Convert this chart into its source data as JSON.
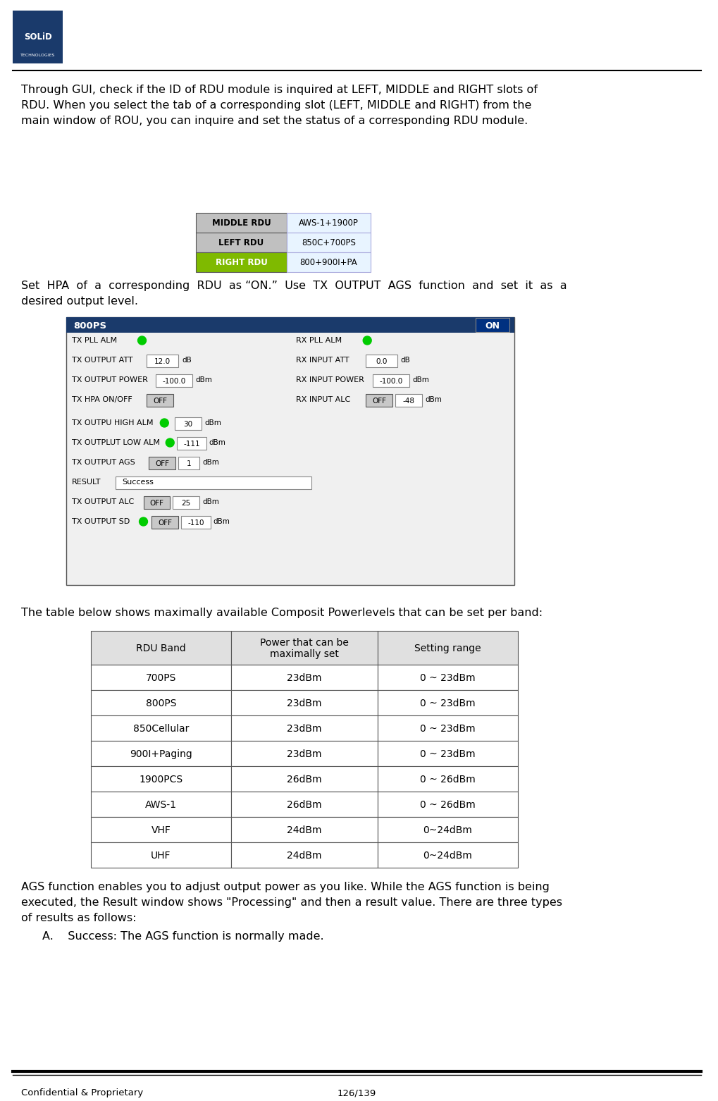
{
  "page_width": 10.2,
  "page_height": 15.62,
  "bg_color": "#ffffff",
  "logo_box_color": "#1a3a6b",
  "logo_text": "SOLiD\nTECHNOLOGIES",
  "para1": "Through GUI, check if the ID of RDU module is inquired at LEFT, MIDDLE and RIGHT slots of\nRDU. When you select the tab of a corresponding slot (LEFT, MIDDLE and RIGHT) from the\nmain window of ROU, you can inquire and set the status of a corresponding RDU module.",
  "rdu_table": {
    "rows": [
      {
        "label": "MIDDLE RDU",
        "label_bg": "#c0c0c0",
        "label_bold": true,
        "value": "AWS-1+1900P",
        "value_bg": "#e8f4ff"
      },
      {
        "label": "LEFT RDU",
        "label_bg": "#c0c0c0",
        "label_bold": true,
        "value": "850C+700PS",
        "value_bg": "#e8f4ff"
      },
      {
        "label": "RIGHT RDU",
        "label_bg": "#7fba00",
        "label_bold": true,
        "value": "800+900I+PA",
        "value_bg": "#e8f4ff"
      }
    ]
  },
  "para2": "Set  HPA  of  a  corresponding  RDU  as “ON.”  Use  TX  OUTPUT  AGS  function  and  set  it  as  a\ndesired output level.",
  "gui_panel": {
    "title": "800PS",
    "title_bg": "#1a3a6b",
    "title_color": "#ffffff",
    "on_btn_color": "#1a3a6b",
    "on_btn_text": "ON",
    "rows": [
      {
        "label": "TX PLL ALM",
        "led": "green",
        "right_label": "RX PLL ALM",
        "right_led": "green"
      },
      {
        "label": "TX OUTPUT ATT",
        "value1": "12.0",
        "unit1": "dB",
        "right_label": "RX INPUT ATT",
        "right_value": "0.0",
        "right_unit": "dB"
      },
      {
        "label": "TX OUTPUT POWER",
        "value1": "-100.0",
        "unit1": "dBm",
        "right_label": "RX INPUT POWER",
        "right_value": "-100.0",
        "right_unit": "dBm"
      },
      {
        "label": "TX HPA ON/OFF",
        "btn": "OFF",
        "right_label": "RX INPUT ALC",
        "btn2": "OFF",
        "right_value": "-48",
        "right_unit": "dBm"
      },
      {
        "label": "",
        "spacer": true
      },
      {
        "label": "TX OUTPU HIGH ALM",
        "led": "green",
        "value1": "30",
        "unit1": "dBm"
      },
      {
        "label": "TX OUTPLUT LOW ALM",
        "led": "green",
        "value1": "-111",
        "unit1": "dBm"
      },
      {
        "label": "TX OUTPUT AGS",
        "btn": "OFF",
        "value1": "1",
        "unit1": "dBm"
      },
      {
        "label": "RESULT",
        "result_text": "Success"
      },
      {
        "label": "TX OUTPUT ALC",
        "btn": "OFF",
        "value1": "25",
        "unit1": "dBm"
      },
      {
        "label": "TX OUTPUT SD",
        "led": "green",
        "btn": "OFF",
        "value1": "-110",
        "unit1": "dBm"
      }
    ]
  },
  "para3": "The table below shows maximally available Composit Powerlevels that can be set per band:",
  "power_table": {
    "headers": [
      "RDU Band",
      "Power that can be\nmaximally set",
      "Setting range"
    ],
    "rows": [
      [
        "700PS",
        "23dBm",
        "0 ~ 23dBm"
      ],
      [
        "800PS",
        "23dBm",
        "0 ~ 23dBm"
      ],
      [
        "850Cellular",
        "23dBm",
        "0 ~ 23dBm"
      ],
      [
        "900I+Paging",
        "23dBm",
        "0 ~ 23dBm"
      ],
      [
        "1900PCS",
        "26dBm",
        "0 ~ 26dBm"
      ],
      [
        "AWS-1",
        "26dBm",
        "0 ~ 26dBm"
      ],
      [
        "VHF",
        "24dBm",
        "0~24dBm"
      ],
      [
        "UHF",
        "24dBm",
        "0~24dBm"
      ]
    ]
  },
  "para4": "AGS function enables you to adjust output power as you like. While the AGS function is being\nexecuted, the Result window shows \"Processing\" and then a result value. There are three types\nof results as follows:",
  "bullet_a": "A.    Success: The AGS function is normally made.",
  "footer_left": "Confidential & Proprietary",
  "footer_right": "126/139",
  "separator_color": "#000000",
  "text_color": "#000000",
  "font_family": "DejaVu Sans"
}
